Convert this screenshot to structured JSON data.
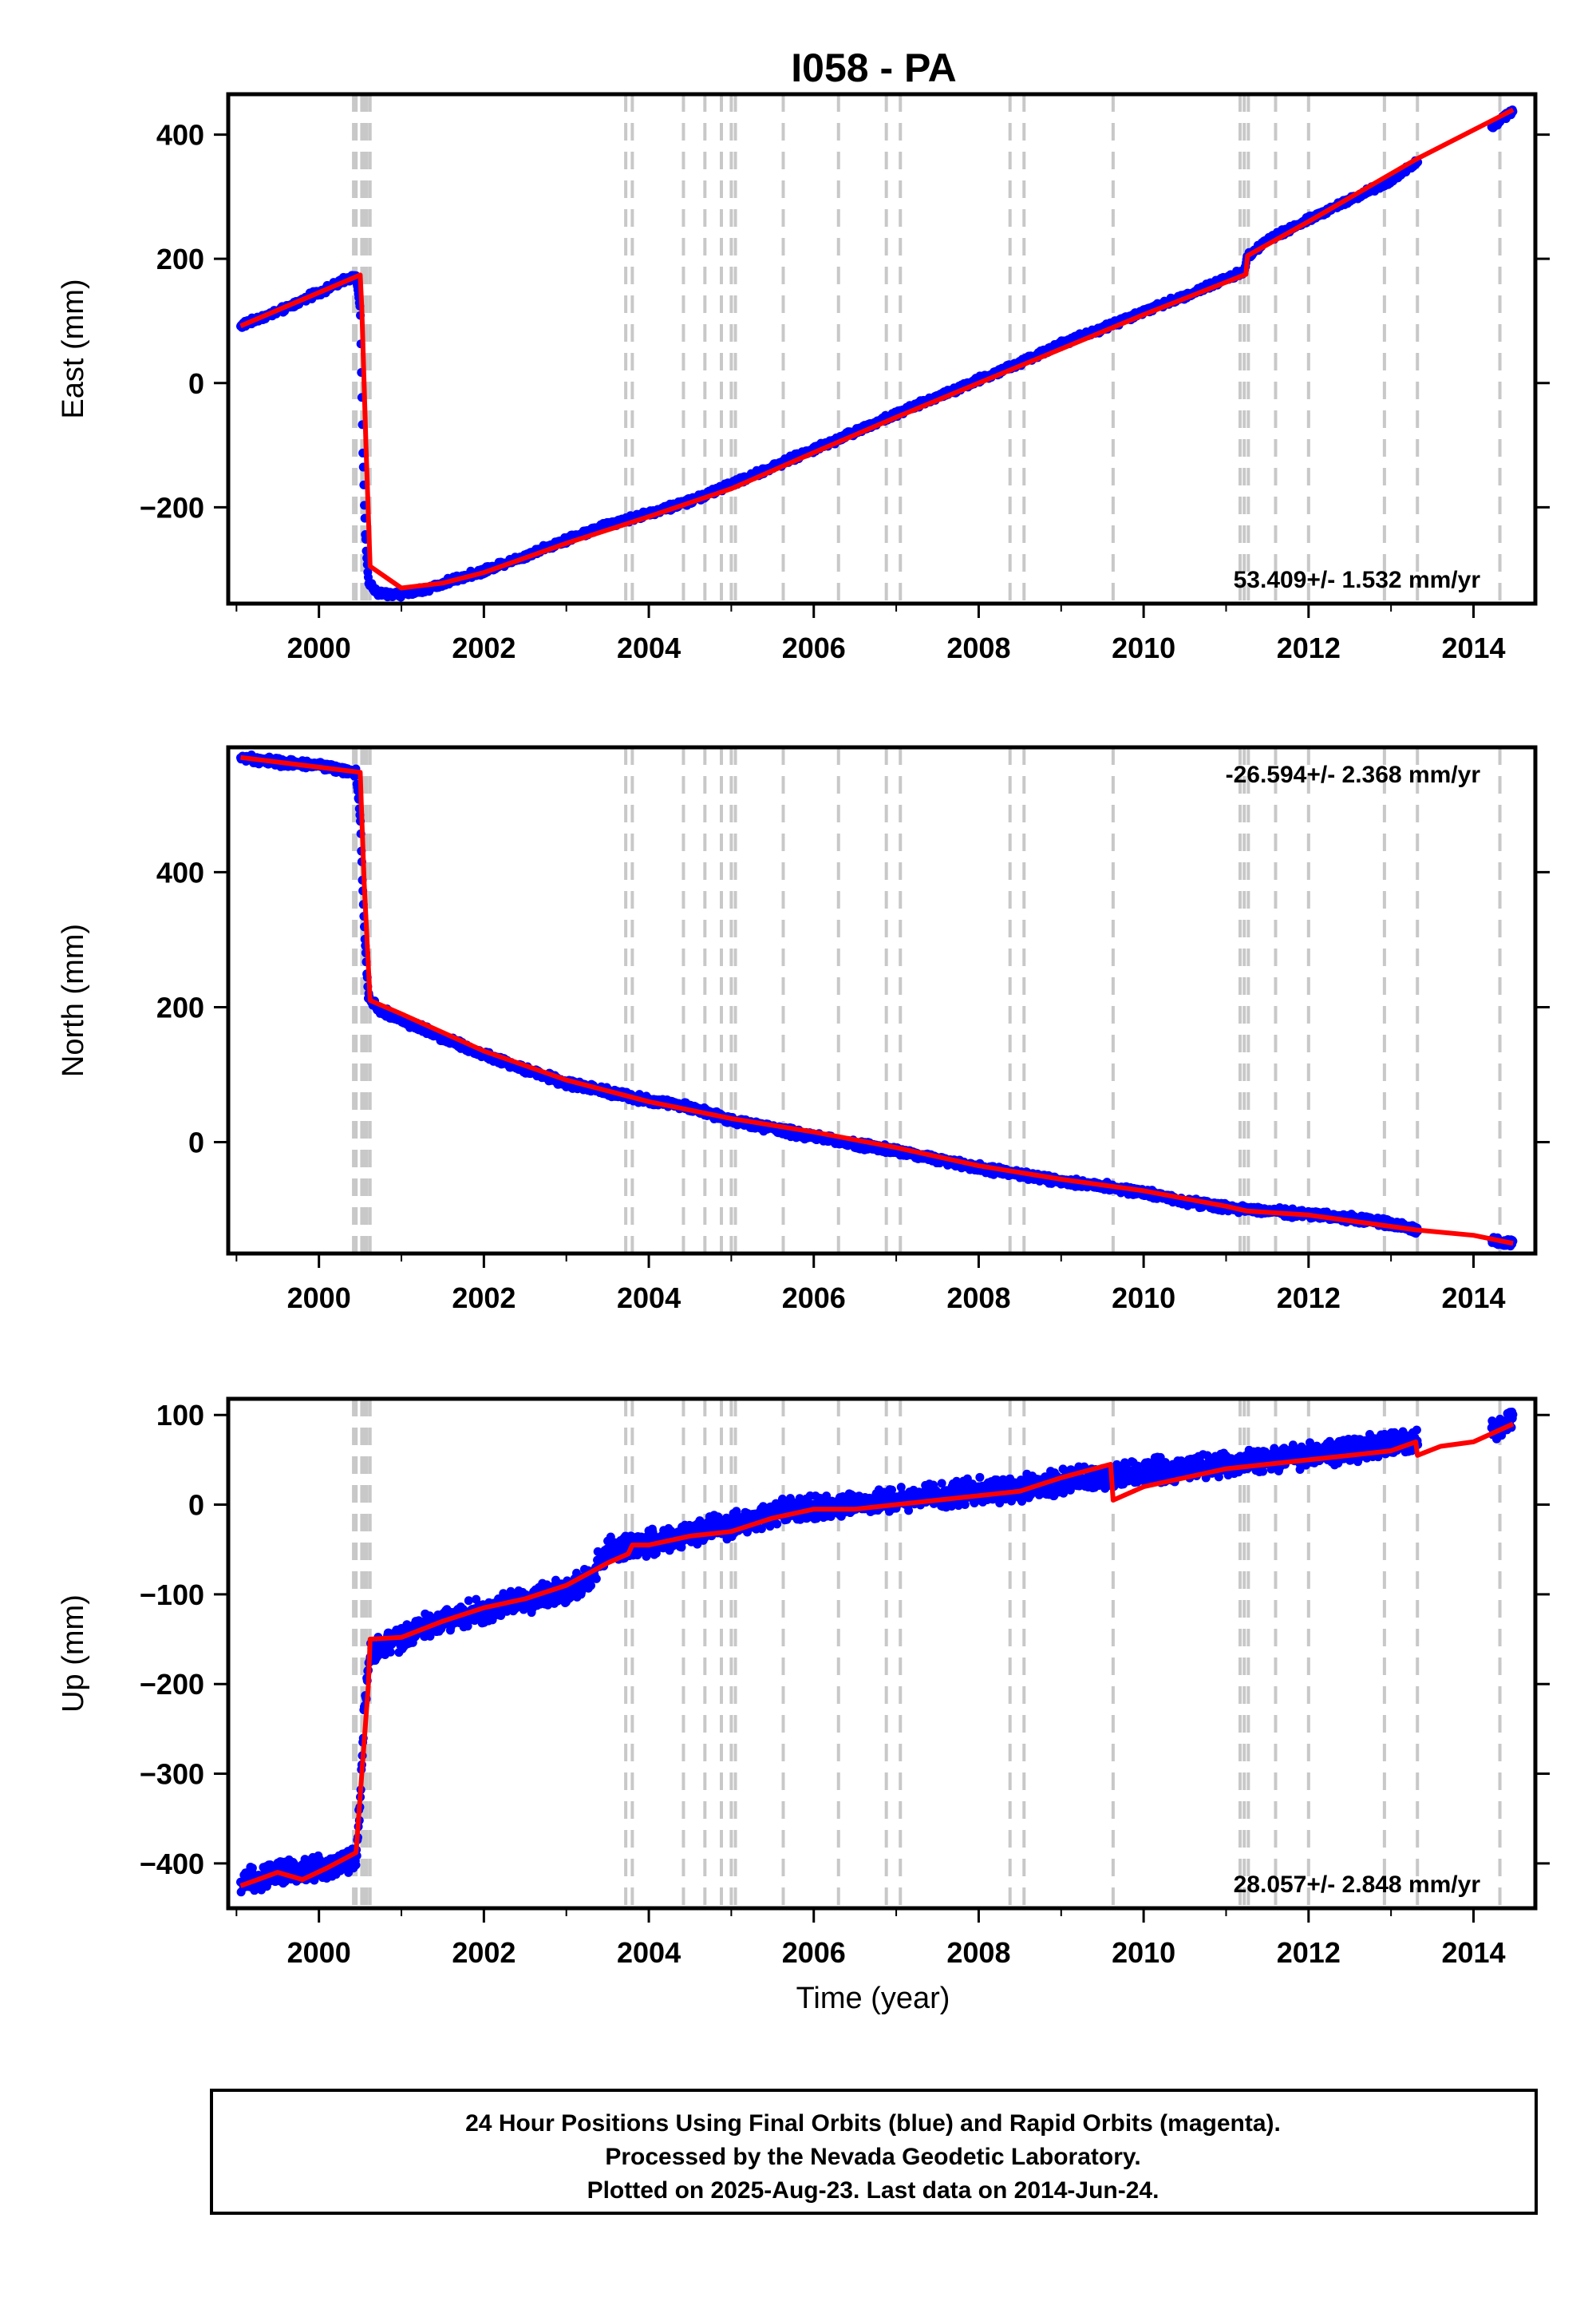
{
  "title": "I058 - PA",
  "xlabel": "Time (year)",
  "x_ticks": [
    2000,
    2002,
    2004,
    2006,
    2008,
    2010,
    2012,
    2014
  ],
  "xlim": [
    1998.9,
    2014.75
  ],
  "event_lines": [
    2000.42,
    2000.45,
    2000.52,
    2000.55,
    2000.58,
    2000.62,
    2003.72,
    2003.8,
    2004.42,
    2004.68,
    2004.88,
    2005.0,
    2005.05,
    2005.63,
    2006.3,
    2006.88,
    2007.05,
    2008.38,
    2008.55,
    2009.63,
    2011.17,
    2011.22,
    2011.27,
    2011.6,
    2012.0,
    2012.92,
    2013.32,
    2014.32
  ],
  "colors": {
    "data": "#0000ff",
    "model": "#ff0000",
    "event": "#c8c8c8",
    "frame": "#000000"
  },
  "chart_data": [
    {
      "type": "scatter",
      "panel": "east",
      "ylabel": "East (mm)",
      "ylim": [
        -355,
        465
      ],
      "y_ticks": [
        -200,
        0,
        200,
        400
      ],
      "rate_text": "53.409+/- 1.532 mm/yr",
      "rate_position": "bottom-right",
      "scatter": 6,
      "series": [
        {
          "name": "Final Orbits",
          "x": [
            1999.05,
            1999.3,
            1999.6,
            1999.9,
            2000.2,
            2000.45,
            2000.5,
            2000.53,
            2000.56,
            2000.6,
            2000.7,
            2001.0,
            2001.3,
            2001.6,
            2002.0,
            2002.5,
            2003.0,
            2003.5,
            2004.0,
            2004.5,
            2005.0,
            2005.5,
            2006.0,
            2006.5,
            2007.0,
            2007.5,
            2008.0,
            2008.5,
            2009.0,
            2009.5,
            2010.0,
            2010.5,
            2011.0,
            2011.22,
            2011.26,
            2011.5,
            2012.0,
            2012.5,
            2013.0,
            2013.3,
            2013.9,
            2014.2,
            2014.48
          ],
          "y": [
            92,
            105,
            120,
            140,
            158,
            174,
            120,
            -100,
            -240,
            -320,
            -338,
            -340,
            -332,
            -318,
            -302,
            -278,
            -252,
            -228,
            -210,
            -190,
            -163,
            -135,
            -107,
            -78,
            -50,
            -22,
            5,
            32,
            63,
            88,
            115,
            140,
            168,
            180,
            205,
            230,
            263,
            295,
            325,
            355,
            385,
            410,
            440
          ]
        },
        {
          "name": "Model",
          "x": [
            1999.05,
            2000.5,
            2000.52,
            2000.57,
            2000.62,
            2001.0,
            2001.5,
            2002.0,
            2003.0,
            2004.0,
            2005.0,
            2006.0,
            2007.0,
            2008.0,
            2009.0,
            2010.0,
            2011.24,
            2011.26,
            2012.0,
            2013.3,
            2014.48
          ],
          "y": [
            92,
            174,
            120,
            -100,
            -295,
            -330,
            -322,
            -305,
            -258,
            -215,
            -170,
            -112,
            -55,
            0,
            55,
            110,
            175,
            205,
            260,
            360,
            440
          ]
        }
      ]
    },
    {
      "type": "scatter",
      "panel": "north",
      "ylabel": "North (mm)",
      "ylim": [
        -165,
        585
      ],
      "y_ticks": [
        0,
        200,
        400
      ],
      "rate_text": "-26.594+/- 2.368 mm/yr",
      "rate_position": "top-right",
      "scatter": 7,
      "series": [
        {
          "name": "Final Orbits",
          "x": [
            1999.05,
            1999.5,
            2000.0,
            2000.45,
            2000.5,
            2000.53,
            2000.56,
            2000.6,
            2000.7,
            2001.0,
            2001.5,
            2002.0,
            2002.5,
            2003.0,
            2003.5,
            2004.0,
            2004.5,
            2005.0,
            2005.5,
            2006.0,
            2006.5,
            2007.0,
            2007.5,
            2008.0,
            2008.5,
            2009.0,
            2009.5,
            2010.0,
            2010.5,
            2011.0,
            2011.3,
            2011.6,
            2012.0,
            2012.5,
            2013.0,
            2013.3,
            2014.3,
            2014.48
          ],
          "y": [
            570,
            563,
            558,
            548,
            480,
            380,
            290,
            215,
            200,
            180,
            155,
            130,
            108,
            88,
            75,
            62,
            52,
            33,
            20,
            8,
            -3,
            -13,
            -25,
            -38,
            -48,
            -58,
            -65,
            -75,
            -88,
            -97,
            -100,
            -103,
            -107,
            -113,
            -120,
            -130,
            -147,
            -150
          ]
        },
        {
          "name": "Model",
          "x": [
            1999.05,
            2000.5,
            2000.52,
            2000.55,
            2000.62,
            2001.0,
            2002.0,
            2003.0,
            2004.0,
            2005.0,
            2006.0,
            2007.0,
            2008.0,
            2009.0,
            2010.0,
            2011.0,
            2011.25,
            2012.0,
            2013.3,
            2014.0,
            2014.48
          ],
          "y": [
            570,
            548,
            480,
            380,
            210,
            190,
            135,
            92,
            60,
            35,
            15,
            -8,
            -35,
            -55,
            -72,
            -95,
            -102,
            -108,
            -130,
            -138,
            -150
          ]
        }
      ]
    },
    {
      "type": "scatter",
      "panel": "up",
      "ylabel": "Up (mm)",
      "ylim": [
        -450,
        118
      ],
      "y_ticks": [
        -400,
        -300,
        -200,
        -100,
        0,
        100
      ],
      "rate_text": "28.057+/- 2.848 mm/yr",
      "rate_position": "bottom-right",
      "scatter": 16,
      "series": [
        {
          "name": "Final Orbits",
          "x": [
            1999.05,
            1999.5,
            2000.0,
            2000.45,
            2000.5,
            2000.55,
            2000.62,
            2000.7,
            2001.0,
            2001.5,
            2002.0,
            2002.5,
            2003.0,
            2003.3,
            2003.5,
            2004.0,
            2004.5,
            2005.0,
            2005.5,
            2006.0,
            2006.5,
            2007.0,
            2007.5,
            2008.0,
            2008.5,
            2009.0,
            2009.5,
            2010.0,
            2010.5,
            2011.0,
            2011.5,
            2012.0,
            2012.5,
            2013.0,
            2013.3,
            2014.2,
            2014.48
          ],
          "y": [
            -420,
            -410,
            -405,
            -395,
            -330,
            -230,
            -160,
            -160,
            -148,
            -128,
            -118,
            -108,
            -95,
            -80,
            -50,
            -42,
            -32,
            -22,
            -10,
            -3,
            0,
            5,
            10,
            15,
            18,
            25,
            30,
            36,
            40,
            45,
            50,
            55,
            62,
            68,
            72,
            80,
            95
          ]
        },
        {
          "name": "Model",
          "x": [
            1999.05,
            1999.5,
            1999.8,
            2000.1,
            2000.45,
            2000.52,
            2000.6,
            2000.62,
            2001.0,
            2001.5,
            2002.0,
            2002.5,
            2003.0,
            2003.5,
            2003.75,
            2003.8,
            2004.0,
            2004.5,
            2005.0,
            2005.5,
            2006.0,
            2006.5,
            2007.0,
            2007.5,
            2008.0,
            2008.5,
            2009.0,
            2009.6,
            2009.63,
            2010.0,
            2010.5,
            2011.0,
            2011.5,
            2012.0,
            2012.5,
            2013.0,
            2013.3,
            2013.32,
            2013.6,
            2014.0,
            2014.48
          ],
          "y": [
            -425,
            -410,
            -418,
            -405,
            -388,
            -300,
            -200,
            -150,
            -148,
            -130,
            -115,
            -105,
            -90,
            -65,
            -55,
            -45,
            -45,
            -35,
            -30,
            -15,
            -5,
            -5,
            0,
            5,
            10,
            15,
            30,
            45,
            5,
            20,
            30,
            40,
            45,
            50,
            55,
            60,
            70,
            55,
            65,
            70,
            90
          ]
        }
      ]
    }
  ],
  "footer": {
    "line1": "24 Hour Positions Using Final Orbits (blue) and Rapid Orbits (magenta).",
    "line2": "Processed by the Nevada Geodetic Laboratory.",
    "line3": "Plotted on 2025-Aug-23. Last data on 2014-Jun-24."
  }
}
